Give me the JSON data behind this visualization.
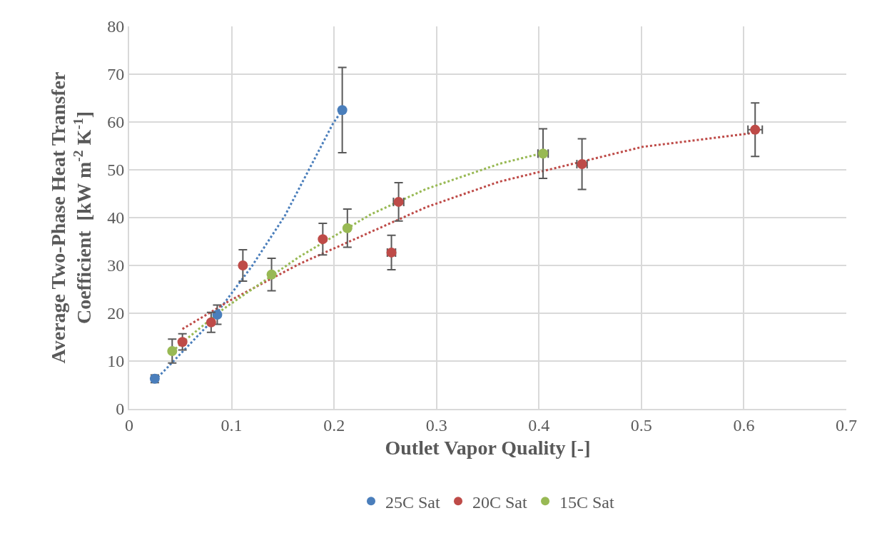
{
  "chart_data": {
    "type": "scatter",
    "xlabel": "Outlet Vapor Quality [-]",
    "ylabel": "Average Two-Phase Heat Transfer\nCoefficient  [kW m$^{-2}$ K$^{-1}$]",
    "xlim": [
      0,
      0.7
    ],
    "xticks": [
      0,
      0.1,
      0.2,
      0.3,
      0.4,
      0.5,
      0.6,
      0.7
    ],
    "ylim": [
      0,
      80
    ],
    "yticks": [
      0,
      10,
      20,
      30,
      40,
      50,
      60,
      70,
      80
    ],
    "grid": true,
    "legend": "bottom",
    "marker": "circle",
    "series": [
      {
        "name": "25C Sat",
        "color": "#4a7ebb",
        "x": [
          0.025,
          0.086,
          0.208
        ],
        "values": [
          6.3,
          19.7,
          62.5
        ],
        "errors": [
          0.8,
          2,
          8.9
        ],
        "xerrors": [
          null,
          null,
          null
        ]
      },
      {
        "name": "20C Sat",
        "color": "#be4b48",
        "x": [
          0.052,
          0.08,
          0.111,
          0.189,
          0.256,
          0.263,
          0.442,
          0.611
        ],
        "values": [
          14.0,
          18.1,
          30.0,
          35.5,
          32.7,
          43.3,
          51.2,
          58.4
        ],
        "errors": [
          1.7,
          2.1,
          3.3,
          3.3,
          3.6,
          4.0,
          5.3,
          5.6
        ],
        "xerrors": [
          null,
          null,
          null,
          null,
          0.004,
          0.005,
          0.005,
          0.007
        ]
      },
      {
        "name": "15C Sat",
        "color": "#98b954",
        "x": [
          0.042,
          0.139,
          0.213,
          0.404
        ],
        "values": [
          12.1,
          28.1,
          37.8,
          53.4
        ],
        "errors": [
          2.5,
          3.4,
          4.0,
          5.2
        ],
        "xerrors": [
          null,
          null,
          null,
          0.005
        ]
      },
      {
        "type": "line",
        "color": "#4a7ebb",
        "line_style": "dotted",
        "marker": "none",
        "x": [
          0.025,
          0.034,
          0.076,
          0.12,
          0.152,
          0.199,
          0.208
        ],
        "values": [
          6.0,
          7.9,
          17.3,
          29.9,
          40.4,
          59.7,
          62.5
        ]
      },
      {
        "type": "line",
        "color": "#be4b48",
        "line_style": "dotted",
        "marker": "none",
        "x": [
          0.052,
          0.088,
          0.097,
          0.166,
          0.29,
          0.361,
          0.501,
          0.605,
          0.611
        ],
        "values": [
          16.7,
          21.3,
          22.5,
          30.3,
          42.2,
          47.5,
          54.8,
          57.6,
          57.8
        ]
      },
      {
        "type": "line",
        "color": "#98b954",
        "line_style": "dotted",
        "marker": "none",
        "x": [
          0.042,
          0.056,
          0.092,
          0.166,
          0.236,
          0.29,
          0.362,
          0.396,
          0.404
        ],
        "values": [
          12.0,
          14.6,
          20.9,
          31.8,
          40.7,
          46.0,
          51.3,
          53.1,
          53.4
        ]
      }
    ]
  }
}
